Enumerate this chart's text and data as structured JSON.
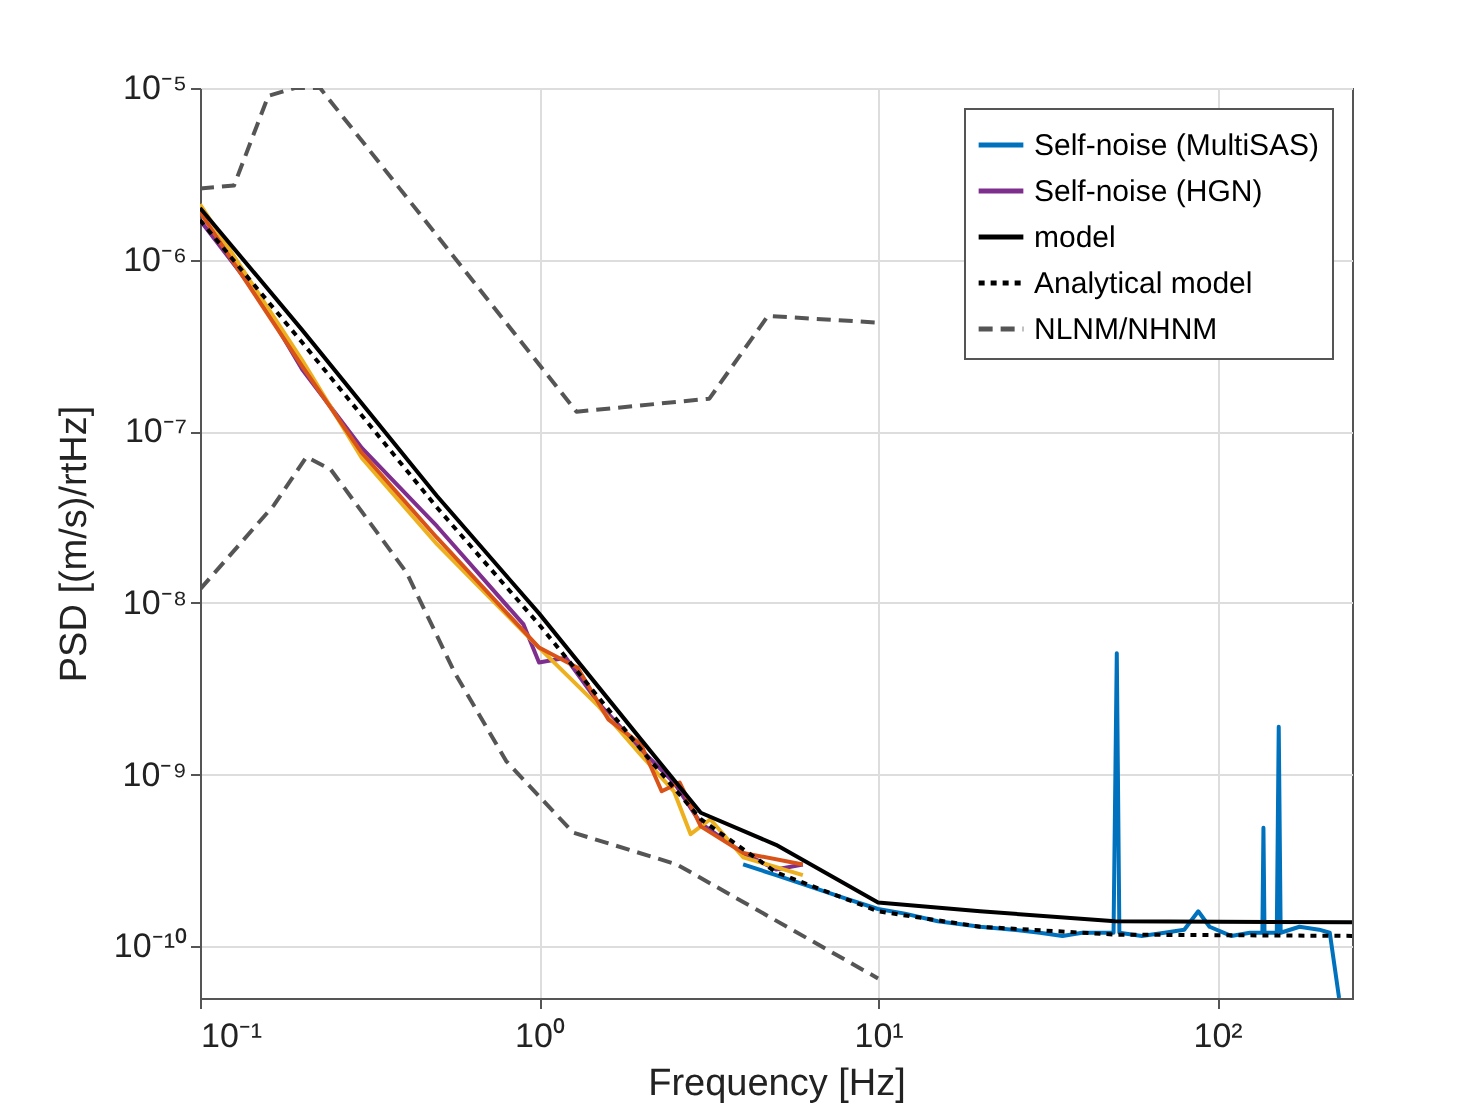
{
  "chart_data": {
    "type": "line",
    "xlabel": "Frequency [Hz]",
    "ylabel": "PSD [(m/s)/rtHz]",
    "log": "xy",
    "grid": true,
    "legend": "top right",
    "xlim": [
      0.1,
      250
    ],
    "ylim": [
      5e-11,
      1e-05
    ],
    "xticks": [
      {
        "value": 0.1,
        "label": "10⁻¹"
      },
      {
        "value": 1,
        "label": "10⁰"
      },
      {
        "value": 10,
        "label": "10¹"
      },
      {
        "value": 100,
        "label": "10²"
      }
    ],
    "yticks": [
      {
        "value": 1e-10,
        "label": "10⁻¹⁰"
      },
      {
        "value": 1e-09,
        "label": "10⁻⁹"
      },
      {
        "value": 1e-08,
        "label": "10⁻⁸"
      },
      {
        "value": 1e-07,
        "label": "10⁻⁷"
      },
      {
        "value": 1e-06,
        "label": "10⁻⁶"
      },
      {
        "value": 1e-05,
        "label": "10⁻⁵"
      }
    ],
    "series": [
      {
        "name": "Self-noise (MultiSAS)",
        "color": "#0072bd",
        "line_style": "solid",
        "x": [
          4,
          5,
          6,
          8,
          10,
          12,
          15,
          20,
          25,
          30,
          35,
          40,
          48,
          49.5,
          50.6,
          51.5,
          60,
          70,
          80,
          88,
          95,
          110,
          125,
          136,
          137,
          138,
          150,
          152,
          154,
          175,
          200,
          215,
          229
        ],
        "values": [
          3e-10,
          2.6e-10,
          2.3e-10,
          1.9e-10,
          1.65e-10,
          1.55e-10,
          1.4e-10,
          1.3e-10,
          1.25e-10,
          1.2e-10,
          1.15e-10,
          1.2e-10,
          1.2e-10,
          1.2e-10,
          5.1e-09,
          1.2e-10,
          1.15e-10,
          1.2e-10,
          1.25e-10,
          1.6e-10,
          1.3e-10,
          1.15e-10,
          1.2e-10,
          1.2e-10,
          4.9e-10,
          1.2e-10,
          1.2e-10,
          1.9e-09,
          1.2e-10,
          1.3e-10,
          1.25e-10,
          1.2e-10,
          5e-11
        ]
      },
      {
        "name": "Self-noise (HGN)",
        "color": "#7e2f8e",
        "line_style": "solid",
        "x": [
          0.1,
          0.15,
          0.2,
          0.3,
          0.5,
          0.9,
          1.0,
          1.2,
          1.5,
          2,
          2.5,
          3,
          4,
          5,
          6
        ],
        "values": [
          1.7e-06,
          6e-07,
          2.3e-07,
          8e-08,
          2.8e-08,
          7.5e-09,
          4.5e-09,
          4.8e-09,
          2.6e-09,
          1.4e-09,
          9e-10,
          5.2e-10,
          3.5e-10,
          2.8e-10,
          3e-10
        ]
      },
      {
        "color": "#edb120",
        "line_style": "solid",
        "x": [
          0.1,
          0.2,
          0.3,
          0.5,
          1,
          1.5,
          2,
          2.5,
          2.8,
          3.2,
          4,
          6
        ],
        "values": [
          2.1e-06,
          2.6e-07,
          7e-08,
          2.2e-08,
          5.5e-09,
          2.5e-09,
          1.3e-09,
          8e-10,
          4.5e-10,
          5.5e-10,
          3.3e-10,
          2.6e-10
        ]
      },
      {
        "color": "#d95319",
        "line_style": "solid",
        "x": [
          0.1,
          0.2,
          0.3,
          0.5,
          1,
          1.3,
          1.6,
          2,
          2.3,
          2.6,
          3,
          4,
          6
        ],
        "values": [
          1.9e-06,
          2.4e-07,
          7.5e-08,
          2.4e-08,
          5.5e-09,
          4.2e-09,
          2.1e-09,
          1.5e-09,
          8e-10,
          9e-10,
          5e-10,
          3.5e-10,
          3e-10
        ]
      },
      {
        "name": "model",
        "color": "#000000",
        "line_style": "solid",
        "x": [
          0.1,
          0.2,
          0.5,
          1,
          2,
          3,
          5,
          10,
          20,
          50,
          250
        ],
        "values": [
          2e-06,
          3.9e-07,
          4.2e-08,
          8.7e-09,
          1.6e-09,
          6e-10,
          3.9e-10,
          1.8e-10,
          1.6e-10,
          1.4e-10,
          1.38e-10
        ]
      },
      {
        "name": "Analytical model",
        "color": "#000000",
        "line_style": "dotted",
        "x": [
          0.1,
          0.2,
          0.5,
          1,
          2,
          3,
          5,
          10,
          20,
          50,
          250
        ],
        "values": [
          1.7e-06,
          3.3e-07,
          3.6e-08,
          7.5e-09,
          1.4e-09,
          5.5e-10,
          2.7e-10,
          1.6e-10,
          1.3e-10,
          1.17e-10,
          1.15e-10
        ]
      },
      {
        "name": "NLNM/NHNM",
        "color": "#555555",
        "line_style": "dashed",
        "x": [
          0.1,
          0.126,
          0.159,
          0.19,
          0.226,
          1.29,
          3.18,
          4.73,
          10
        ],
        "values": [
          2.6e-06,
          2.7e-06,
          9e-06,
          1e-05,
          1e-05,
          1.3e-07,
          1.55e-07,
          4.7e-07,
          4.3e-07
        ]
      },
      {
        "color": "#555555",
        "line_style": "dashed",
        "x": [
          0.1,
          0.165,
          0.206,
          0.243,
          0.407,
          0.565,
          0.8,
          1.26,
          2.55,
          10
        ],
        "values": [
          1.2e-08,
          3.7e-08,
          7.1e-08,
          6e-08,
          1.5e-08,
          3.9e-09,
          1.2e-09,
          4.6e-10,
          3e-10,
          6.5e-11
        ]
      }
    ]
  }
}
